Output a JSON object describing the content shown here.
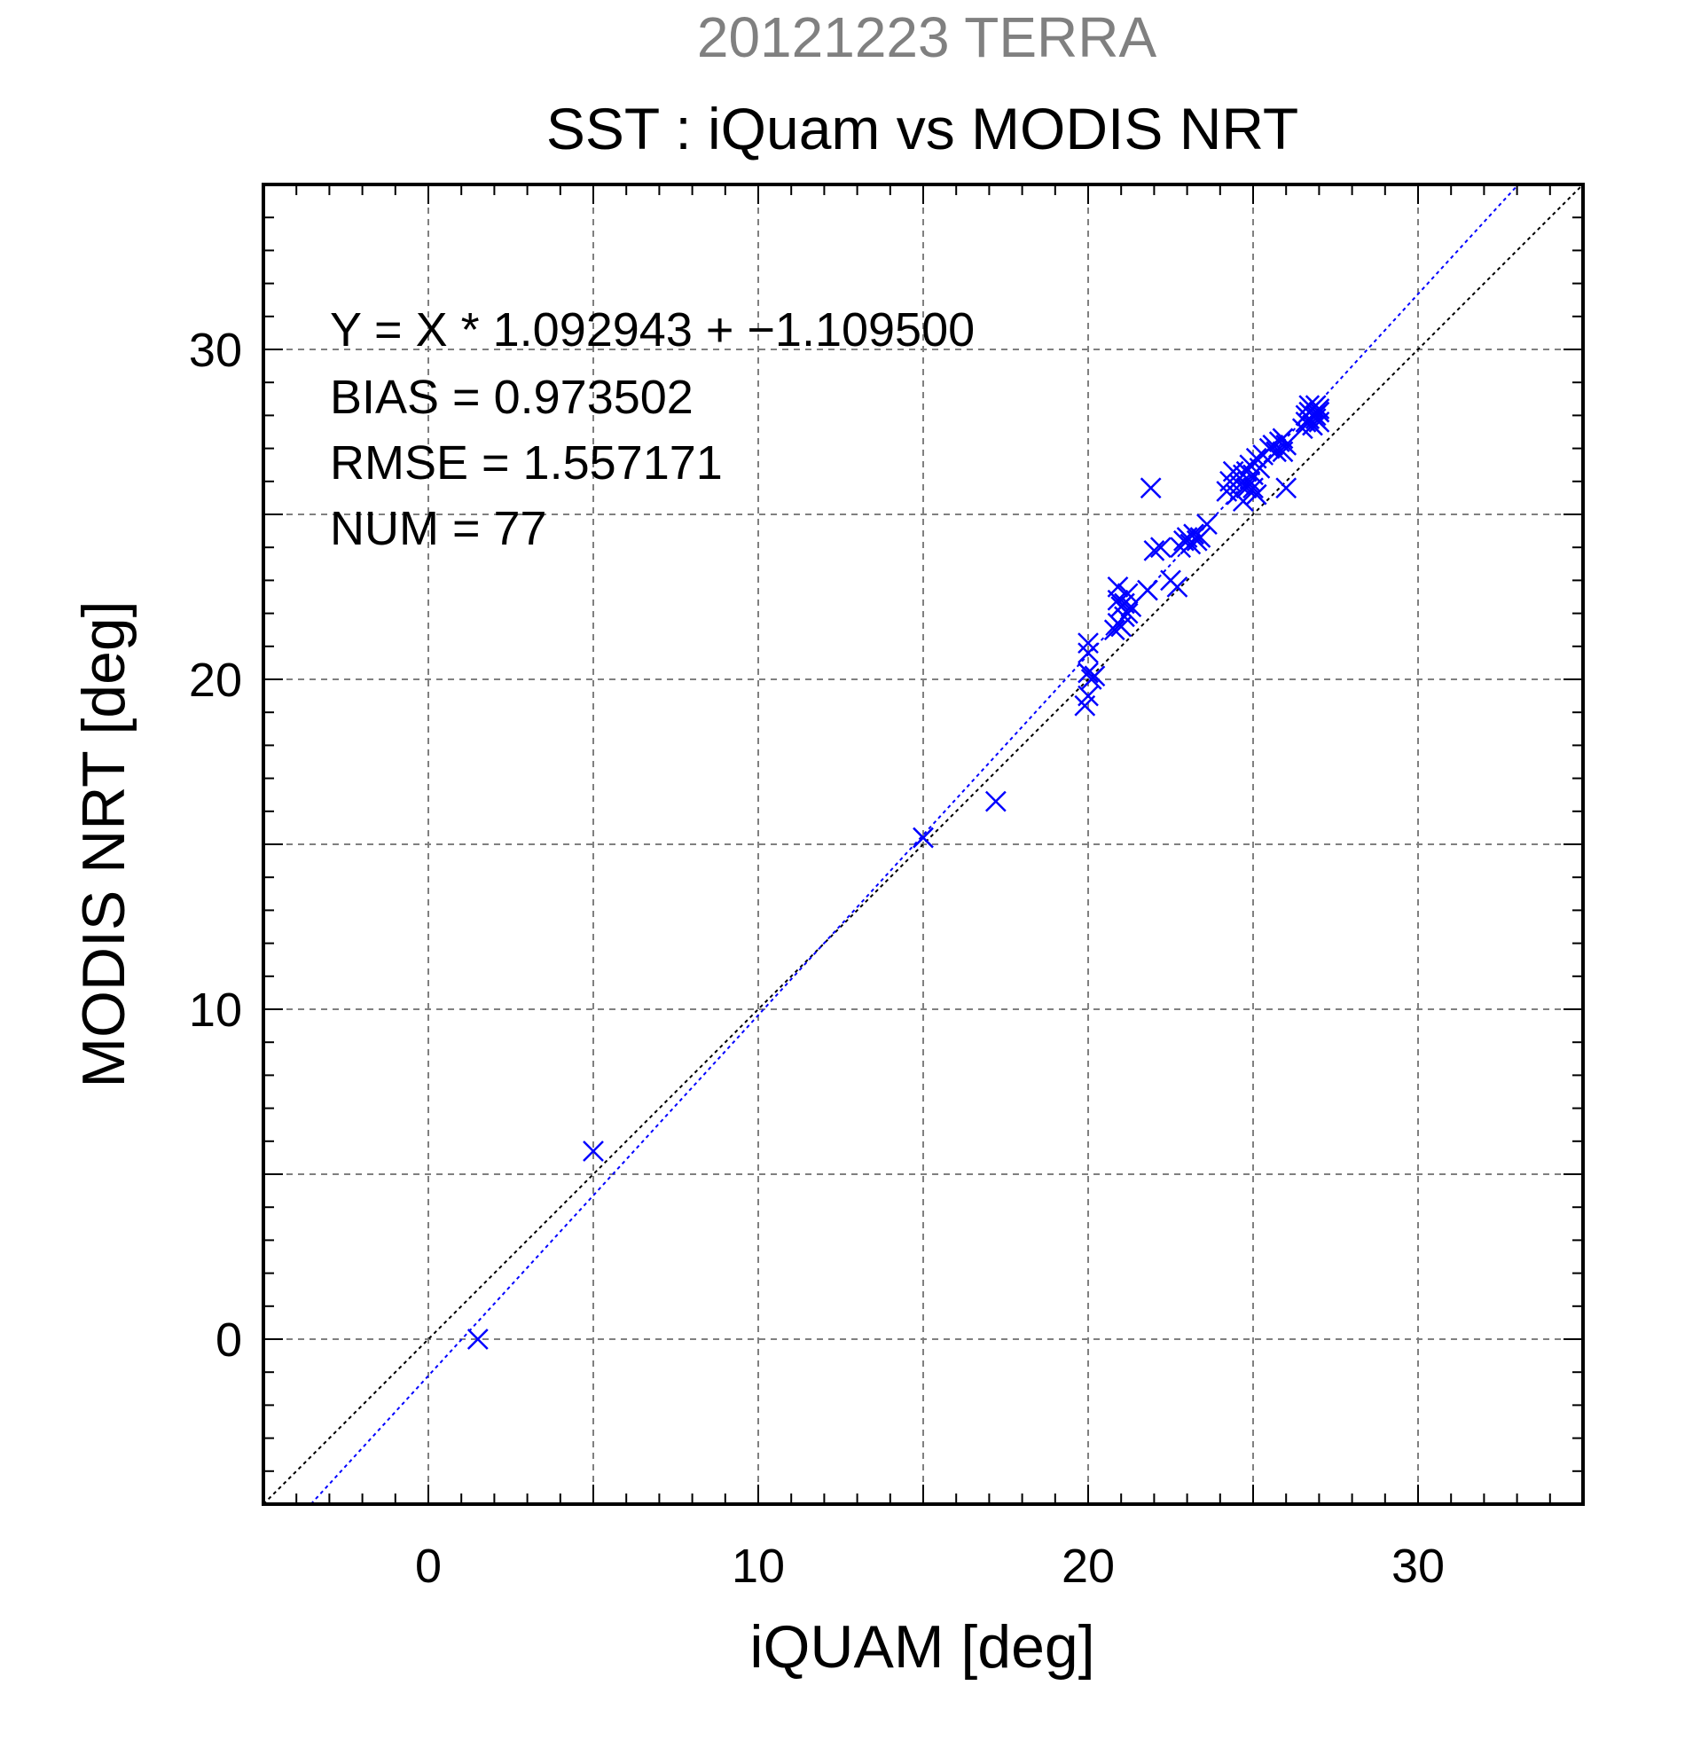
{
  "chart_data": {
    "type": "scatter",
    "date_title": "20121223 TERRA",
    "title": "SST : iQuam vs MODIS NRT",
    "xlabel": "iQUAM [deg]",
    "ylabel": "MODIS NRT [deg]",
    "xlim": [
      -5,
      35
    ],
    "ylim": [
      -5,
      35
    ],
    "xticks": [
      0,
      10,
      20,
      30
    ],
    "yticks": [
      0,
      10,
      20,
      30
    ],
    "grid": true,
    "annotations": [
      "Y = X * 1.092943 + −1.109500",
      "BIAS = 0.973502",
      "RMSE = 1.557171",
      "NUM = 77"
    ],
    "colors": {
      "points": "#0000ff",
      "fit_line": "#0000ff",
      "identity_line": "#000000",
      "date_title": "#808080"
    },
    "lines": [
      {
        "role": "identity",
        "slope": 1,
        "intercept": 0
      },
      {
        "role": "fit",
        "slope": 1.092943,
        "intercept": -1.1095
      }
    ],
    "points": [
      [
        1.5,
        0.0
      ],
      [
        5.0,
        5.7
      ],
      [
        15.0,
        15.2
      ],
      [
        17.2,
        16.3
      ],
      [
        19.9,
        19.2
      ],
      [
        20.0,
        19.5
      ],
      [
        20.0,
        20.2
      ],
      [
        20.1,
        20.0
      ],
      [
        20.2,
        20.1
      ],
      [
        20.0,
        20.8
      ],
      [
        20.0,
        21.1
      ],
      [
        20.8,
        21.5
      ],
      [
        20.9,
        21.7
      ],
      [
        21.0,
        21.6
      ],
      [
        21.1,
        21.9
      ],
      [
        21.2,
        22.0
      ],
      [
        21.0,
        22.2
      ],
      [
        20.9,
        22.4
      ],
      [
        21.1,
        22.3
      ],
      [
        21.3,
        22.2
      ],
      [
        20.9,
        22.8
      ],
      [
        21.2,
        22.6
      ],
      [
        21.8,
        22.7
      ],
      [
        22.0,
        23.9
      ],
      [
        22.2,
        24.0
      ],
      [
        21.9,
        25.8
      ],
      [
        22.5,
        23.0
      ],
      [
        22.7,
        22.8
      ],
      [
        22.8,
        24.0
      ],
      [
        22.9,
        24.2
      ],
      [
        23.0,
        24.3
      ],
      [
        23.1,
        24.1
      ],
      [
        23.2,
        24.4
      ],
      [
        23.3,
        24.2
      ],
      [
        23.4,
        24.3
      ],
      [
        23.6,
        24.7
      ],
      [
        24.2,
        25.7
      ],
      [
        24.3,
        26.0
      ],
      [
        24.4,
        26.3
      ],
      [
        24.5,
        25.6
      ],
      [
        24.6,
        25.9
      ],
      [
        24.6,
        26.1
      ],
      [
        24.7,
        26.2
      ],
      [
        24.7,
        25.4
      ],
      [
        24.8,
        25.8
      ],
      [
        24.8,
        26.3
      ],
      [
        24.9,
        26.0
      ],
      [
        24.9,
        26.5
      ],
      [
        25.0,
        25.8
      ],
      [
        25.0,
        26.2
      ],
      [
        25.1,
        26.7
      ],
      [
        25.1,
        25.6
      ],
      [
        25.2,
        26.4
      ],
      [
        25.3,
        26.8
      ],
      [
        25.5,
        27.0
      ],
      [
        25.6,
        27.1
      ],
      [
        25.7,
        26.9
      ],
      [
        25.8,
        27.2
      ],
      [
        25.9,
        27.3
      ],
      [
        25.9,
        26.9
      ],
      [
        26.0,
        27.1
      ],
      [
        26.0,
        25.8
      ],
      [
        26.5,
        27.6
      ],
      [
        26.6,
        27.8
      ],
      [
        26.7,
        27.9
      ],
      [
        26.7,
        28.1
      ],
      [
        26.8,
        28.0
      ],
      [
        26.8,
        28.2
      ],
      [
        26.9,
        27.9
      ],
      [
        26.9,
        28.3
      ],
      [
        27.0,
        28.1
      ],
      [
        27.0,
        27.8
      ],
      [
        26.7,
        28.3
      ],
      [
        26.8,
        27.7
      ],
      [
        26.9,
        28.0
      ],
      [
        27.0,
        28.2
      ],
      [
        26.6,
        28.0
      ]
    ]
  }
}
